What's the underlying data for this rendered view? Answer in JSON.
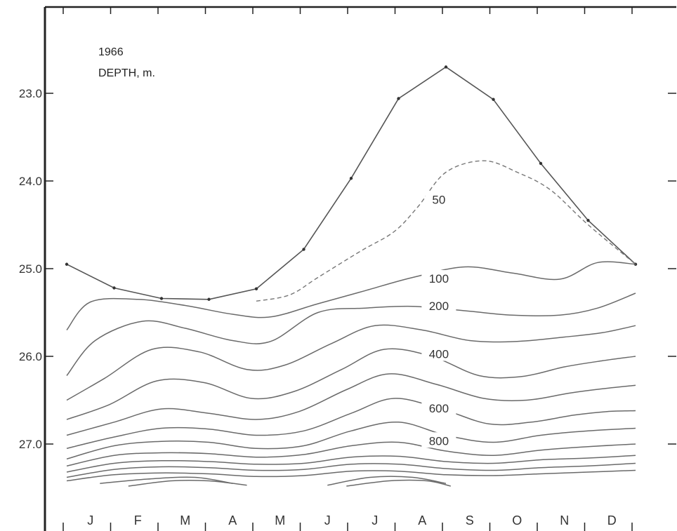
{
  "chart_data": {
    "type": "line",
    "title": "",
    "annotations": [
      "1966",
      "DEPTH, m."
    ],
    "xlabel": "",
    "ylabel": "",
    "categories": [
      "J",
      "F",
      "M",
      "A",
      "M",
      "J",
      "J",
      "A",
      "S",
      "O",
      "N",
      "D"
    ],
    "y_ticks": [
      "23.0",
      "24.0",
      "25.0",
      "26.0",
      "27.0"
    ],
    "ylim": [
      22.0,
      28.0
    ],
    "y_inverted": true,
    "grid": false,
    "series": [
      {
        "name": "",
        "style": "solid-markers",
        "x": [
          0,
          1,
          2,
          3,
          4,
          5,
          6,
          7,
          8,
          9,
          10,
          11,
          12
        ],
        "values": [
          24.95,
          25.22,
          25.34,
          25.35,
          25.23,
          24.78,
          23.97,
          23.06,
          22.7,
          23.07,
          23.8,
          24.45,
          24.95
        ]
      },
      {
        "name": "",
        "style": "dashed",
        "x": [
          4,
          4.7,
          5.3,
          6.2,
          6.9,
          7.4,
          8.0,
          8.8,
          9.5,
          10.2,
          11.0,
          12.0
        ],
        "values": [
          25.37,
          25.3,
          25.1,
          24.8,
          24.58,
          24.3,
          23.9,
          23.77,
          23.9,
          24.1,
          24.5,
          24.95
        ]
      },
      {
        "name": "",
        "style": "solid",
        "x": [
          0,
          0.5,
          1.5,
          2.5,
          3.5,
          4.3,
          5.3,
          6.3,
          7.3,
          8.4,
          9.4,
          10.4,
          11.2,
          12.0
        ],
        "values": [
          25.7,
          25.38,
          25.35,
          25.42,
          25.52,
          25.55,
          25.4,
          25.25,
          25.1,
          24.98,
          25.05,
          25.12,
          24.93,
          24.95
        ]
      },
      {
        "name": "",
        "style": "solid",
        "x": [
          0,
          0.6,
          1.6,
          2.5,
          3.5,
          4.3,
          5.3,
          6.3,
          7.3,
          8.4,
          9.4,
          10.4,
          11.2,
          12.0
        ],
        "values": [
          26.22,
          25.82,
          25.6,
          25.68,
          25.82,
          25.83,
          25.5,
          25.45,
          25.43,
          25.48,
          25.53,
          25.53,
          25.45,
          25.28
        ]
      },
      {
        "name": "",
        "style": "solid",
        "x": [
          0,
          0.8,
          1.8,
          2.8,
          3.8,
          4.6,
          5.6,
          6.5,
          7.5,
          8.5,
          9.5,
          10.5,
          11.3,
          12.0
        ],
        "values": [
          26.5,
          26.25,
          25.92,
          25.95,
          26.15,
          26.1,
          25.85,
          25.65,
          25.7,
          25.82,
          25.83,
          25.78,
          25.73,
          25.65
        ]
      },
      {
        "name": "",
        "style": "solid",
        "x": [
          0,
          0.9,
          1.9,
          2.9,
          3.9,
          4.8,
          5.8,
          6.7,
          7.7,
          8.7,
          9.6,
          10.5,
          11.3,
          12.0
        ],
        "values": [
          26.72,
          26.55,
          26.28,
          26.3,
          26.48,
          26.4,
          26.15,
          25.92,
          26.0,
          26.22,
          26.23,
          26.12,
          26.05,
          26.0
        ]
      },
      {
        "name": "",
        "style": "solid",
        "x": [
          0,
          1.0,
          2.0,
          3.0,
          4.0,
          4.9,
          5.9,
          6.8,
          7.8,
          8.8,
          9.7,
          10.6,
          11.3,
          12.0
        ],
        "values": [
          26.9,
          26.75,
          26.6,
          26.65,
          26.72,
          26.63,
          26.38,
          26.2,
          26.32,
          26.48,
          26.5,
          26.42,
          26.37,
          26.33
        ]
      },
      {
        "name": "",
        "style": "solid",
        "x": [
          0,
          1.0,
          2.0,
          3.0,
          4.0,
          5.0,
          6.0,
          6.9,
          7.9,
          8.9,
          9.8,
          10.7,
          11.4,
          12.0
        ],
        "values": [
          27.05,
          26.92,
          26.82,
          26.83,
          26.9,
          26.85,
          26.65,
          26.48,
          26.6,
          26.77,
          26.75,
          26.67,
          26.63,
          26.62
        ]
      },
      {
        "name": "",
        "style": "solid",
        "x": [
          0,
          1.0,
          2.0,
          3.0,
          4.0,
          5.0,
          6.0,
          7.0,
          8.0,
          9.0,
          10.0,
          11.0,
          12.0
        ],
        "values": [
          27.17,
          27.02,
          26.97,
          26.98,
          27.05,
          27.02,
          26.85,
          26.75,
          26.9,
          26.98,
          26.9,
          26.85,
          26.82
        ]
      },
      {
        "name": "",
        "style": "solid",
        "x": [
          0,
          1.0,
          2.0,
          3.0,
          4.0,
          5.0,
          6.0,
          7.0,
          8.0,
          9.0,
          10.0,
          11.0,
          12.0
        ],
        "values": [
          27.25,
          27.13,
          27.1,
          27.11,
          27.15,
          27.12,
          27.02,
          26.98,
          27.08,
          27.13,
          27.07,
          27.03,
          27.0
        ]
      },
      {
        "name": "",
        "style": "solid",
        "x": [
          0,
          1.0,
          2.0,
          3.0,
          4.0,
          5.0,
          6.0,
          7.0,
          8.0,
          9.0,
          10.0,
          11.0,
          12.0
        ],
        "values": [
          27.32,
          27.22,
          27.19,
          27.2,
          27.23,
          27.22,
          27.15,
          27.14,
          27.2,
          27.22,
          27.18,
          27.16,
          27.13
        ]
      },
      {
        "name": "",
        "style": "solid",
        "x": [
          0,
          1.0,
          2.0,
          3.0,
          4.0,
          5.0,
          6.0,
          7.0,
          8.0,
          9.0,
          10.0,
          11.0,
          12.0
        ],
        "values": [
          27.38,
          27.29,
          27.26,
          27.27,
          27.3,
          27.29,
          27.23,
          27.23,
          27.28,
          27.3,
          27.27,
          27.25,
          27.22
        ]
      },
      {
        "name": "",
        "style": "solid",
        "x": [
          0,
          1.0,
          2.0,
          3.0,
          4.0,
          5.0,
          6.0,
          7.0,
          8.0,
          9.0,
          10.0,
          11.0,
          12.0
        ],
        "values": [
          27.42,
          27.35,
          27.33,
          27.34,
          27.37,
          27.36,
          27.31,
          27.31,
          27.35,
          27.36,
          27.34,
          27.32,
          27.3
        ]
      },
      {
        "name": "",
        "style": "solid",
        "x": [
          0.7,
          1.7,
          2.7,
          3.5
        ],
        "values": [
          27.45,
          27.4,
          27.38,
          27.45
        ]
      },
      {
        "name": "",
        "style": "solid",
        "x": [
          1.3,
          2.2,
          3.0,
          3.8
        ],
        "values": [
          27.48,
          27.42,
          27.42,
          27.47
        ]
      },
      {
        "name": "",
        "style": "solid",
        "x": [
          5.5,
          6.4,
          7.3,
          8.0
        ],
        "values": [
          27.47,
          27.38,
          27.38,
          27.45
        ]
      },
      {
        "name": "",
        "style": "solid",
        "x": [
          5.9,
          6.8,
          7.6,
          8.1
        ],
        "values": [
          27.48,
          27.42,
          27.42,
          27.48
        ]
      }
    ],
    "contour_labels": [
      {
        "text": "50",
        "x": 7.85,
        "y": 24.22
      },
      {
        "text": "100",
        "x": 7.85,
        "y": 25.12
      },
      {
        "text": "200",
        "x": 7.85,
        "y": 25.43
      },
      {
        "text": "400",
        "x": 7.85,
        "y": 25.98
      },
      {
        "text": "600",
        "x": 7.85,
        "y": 26.6
      },
      {
        "text": "800",
        "x": 7.85,
        "y": 26.97
      }
    ]
  }
}
